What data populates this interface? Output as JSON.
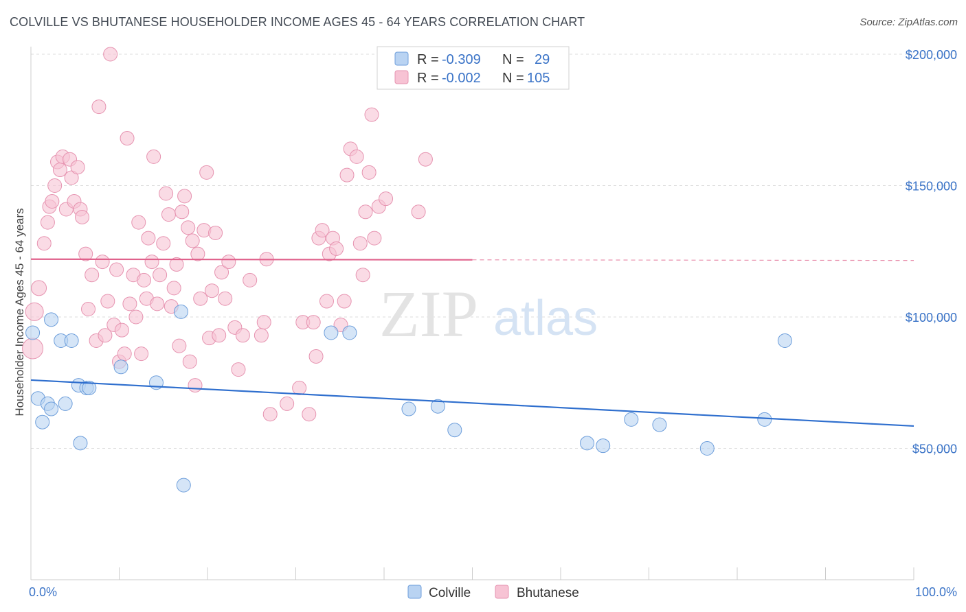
{
  "header": {
    "title": "COLVILLE VS BHUTANESE HOUSEHOLDER INCOME AGES 45 - 64 YEARS CORRELATION CHART",
    "source": "Source: ZipAtlas.com"
  },
  "watermark": {
    "zip": "ZIP",
    "atlas": "atlas"
  },
  "colors": {
    "colville_fill": "#b9d3f2",
    "colville_stroke": "#6d9edb",
    "colville_line": "#2f6fce",
    "bhutanese_fill": "#f7c3d4",
    "bhutanese_stroke": "#e693b0",
    "bhutanese_line": "#e0628c",
    "tick": "#3a73c7",
    "grid": "#dddddd"
  },
  "legend_top": {
    "rows": [
      {
        "r_label": "R =",
        "r_value": "-0.309",
        "n_label": "N =",
        "n_value": "29"
      },
      {
        "r_label": "R =",
        "r_value": "-0.002",
        "n_label": "N =",
        "n_value": "105"
      }
    ]
  },
  "chart_data": {
    "type": "scatter",
    "title": "COLVILLE VS BHUTANESE HOUSEHOLDER INCOME AGES 45 - 64 YEARS CORRELATION CHART",
    "xlabel": "",
    "ylabel": "Householder Income Ages 45 - 64 years",
    "xlim": [
      0,
      100
    ],
    "ylim": [
      0,
      205000
    ],
    "x_tick_labels": [
      "0.0%",
      "100.0%"
    ],
    "y_ticks": [
      50000,
      100000,
      150000,
      200000
    ],
    "y_tick_labels": [
      "$50,000",
      "$100,000",
      "$150,000",
      "$200,000"
    ],
    "series": [
      {
        "name": "Colville",
        "R": -0.309,
        "N": 29,
        "trend": {
          "x0": 0,
          "y0": 76000,
          "x1": 100,
          "y1": 58500,
          "x_solid_end": 100
        },
        "points": [
          [
            0.2,
            94000,
            10
          ],
          [
            0.8,
            69000,
            10
          ],
          [
            1.3,
            60000,
            10
          ],
          [
            1.9,
            67000,
            10
          ],
          [
            2.3,
            65000,
            10
          ],
          [
            2.3,
            99000,
            10
          ],
          [
            3.4,
            91000,
            10
          ],
          [
            3.9,
            67000,
            10
          ],
          [
            4.6,
            91000,
            10
          ],
          [
            5.4,
            74000,
            10
          ],
          [
            5.6,
            52000,
            10
          ],
          [
            6.3,
            73000,
            10
          ],
          [
            6.6,
            73000,
            10
          ],
          [
            10.2,
            81000,
            10
          ],
          [
            14.2,
            75000,
            10
          ],
          [
            17.0,
            102000,
            10
          ],
          [
            17.3,
            36000,
            10
          ],
          [
            34.0,
            94000,
            10
          ],
          [
            36.1,
            94000,
            10
          ],
          [
            42.8,
            65000,
            10
          ],
          [
            46.1,
            66000,
            10
          ],
          [
            48.0,
            57000,
            10
          ],
          [
            63.0,
            52000,
            10
          ],
          [
            64.8,
            51000,
            10
          ],
          [
            68.0,
            61000,
            10
          ],
          [
            71.2,
            59000,
            10
          ],
          [
            76.6,
            50000,
            10
          ],
          [
            83.1,
            61000,
            10
          ],
          [
            85.4,
            91000,
            10
          ]
        ]
      },
      {
        "name": "Bhutanese",
        "R": -0.002,
        "N": 105,
        "trend": {
          "x0": 0,
          "y0": 122000,
          "x1": 100,
          "y1": 121500,
          "x_solid_end": 50
        },
        "points": [
          [
            0.2,
            88000,
            15
          ],
          [
            0.4,
            102000,
            13
          ],
          [
            0.9,
            111000,
            11
          ],
          [
            1.5,
            128000,
            10
          ],
          [
            1.9,
            136000,
            10
          ],
          [
            2.1,
            142000,
            10
          ],
          [
            2.4,
            144000,
            10
          ],
          [
            2.7,
            150000,
            10
          ],
          [
            3.0,
            159000,
            10
          ],
          [
            3.3,
            156000,
            10
          ],
          [
            3.6,
            161000,
            10
          ],
          [
            4.0,
            141000,
            10
          ],
          [
            4.4,
            160000,
            10
          ],
          [
            4.6,
            153000,
            10
          ],
          [
            4.9,
            144000,
            10
          ],
          [
            5.3,
            157000,
            10
          ],
          [
            5.6,
            141000,
            10
          ],
          [
            5.8,
            138000,
            10
          ],
          [
            6.2,
            124000,
            10
          ],
          [
            6.5,
            103000,
            10
          ],
          [
            6.9,
            116000,
            10
          ],
          [
            7.4,
            91000,
            10
          ],
          [
            7.7,
            180000,
            10
          ],
          [
            8.1,
            121000,
            10
          ],
          [
            8.4,
            93000,
            10
          ],
          [
            8.7,
            106000,
            10
          ],
          [
            9.0,
            200000,
            10
          ],
          [
            9.4,
            97000,
            10
          ],
          [
            9.7,
            118000,
            10
          ],
          [
            10.0,
            83000,
            10
          ],
          [
            10.3,
            95000,
            10
          ],
          [
            10.6,
            86000,
            10
          ],
          [
            10.9,
            168000,
            10
          ],
          [
            11.2,
            105000,
            10
          ],
          [
            11.6,
            116000,
            10
          ],
          [
            11.9,
            100000,
            10
          ],
          [
            12.2,
            136000,
            10
          ],
          [
            12.5,
            86000,
            10
          ],
          [
            12.8,
            114000,
            10
          ],
          [
            13.1,
            107000,
            10
          ],
          [
            13.3,
            130000,
            10
          ],
          [
            13.7,
            121000,
            10
          ],
          [
            13.9,
            161000,
            10
          ],
          [
            14.3,
            105000,
            10
          ],
          [
            14.6,
            116000,
            10
          ],
          [
            15.0,
            128000,
            10
          ],
          [
            15.3,
            147000,
            10
          ],
          [
            15.6,
            139000,
            10
          ],
          [
            15.9,
            104000,
            10
          ],
          [
            16.2,
            111000,
            10
          ],
          [
            16.5,
            120000,
            10
          ],
          [
            16.8,
            89000,
            10
          ],
          [
            17.1,
            140000,
            10
          ],
          [
            17.4,
            146000,
            10
          ],
          [
            17.8,
            134000,
            10
          ],
          [
            18.0,
            83000,
            10
          ],
          [
            18.3,
            129000,
            10
          ],
          [
            18.6,
            74000,
            10
          ],
          [
            18.9,
            124000,
            10
          ],
          [
            19.2,
            107000,
            10
          ],
          [
            19.6,
            133000,
            10
          ],
          [
            19.9,
            155000,
            10
          ],
          [
            20.2,
            92000,
            10
          ],
          [
            20.5,
            110000,
            10
          ],
          [
            20.9,
            132000,
            10
          ],
          [
            21.3,
            93000,
            10
          ],
          [
            21.6,
            117000,
            10
          ],
          [
            22.0,
            107000,
            10
          ],
          [
            22.4,
            121000,
            10
          ],
          [
            23.1,
            96000,
            10
          ],
          [
            23.5,
            80000,
            10
          ],
          [
            24.0,
            93000,
            10
          ],
          [
            24.8,
            114000,
            10
          ],
          [
            26.1,
            93000,
            10
          ],
          [
            26.4,
            98000,
            10
          ],
          [
            26.7,
            122000,
            10
          ],
          [
            27.1,
            63000,
            10
          ],
          [
            29.0,
            67000,
            10
          ],
          [
            30.4,
            73000,
            10
          ],
          [
            30.8,
            98000,
            10
          ],
          [
            31.5,
            63000,
            10
          ],
          [
            32.0,
            98000,
            10
          ],
          [
            32.3,
            85000,
            10
          ],
          [
            32.6,
            130000,
            10
          ],
          [
            33.0,
            133000,
            10
          ],
          [
            33.5,
            106000,
            10
          ],
          [
            33.8,
            124000,
            10
          ],
          [
            34.2,
            130000,
            10
          ],
          [
            34.6,
            126000,
            10
          ],
          [
            35.1,
            97000,
            10
          ],
          [
            35.5,
            106000,
            10
          ],
          [
            35.8,
            154000,
            10
          ],
          [
            36.2,
            164000,
            10
          ],
          [
            36.9,
            161000,
            10
          ],
          [
            37.3,
            128000,
            10
          ],
          [
            37.6,
            116000,
            10
          ],
          [
            37.9,
            140000,
            10
          ],
          [
            38.3,
            155000,
            10
          ],
          [
            38.6,
            177000,
            10
          ],
          [
            38.9,
            130000,
            10
          ],
          [
            39.4,
            142000,
            10
          ],
          [
            40.2,
            145000,
            10
          ],
          [
            43.9,
            140000,
            10
          ],
          [
            44.7,
            160000,
            10
          ],
          [
            50.0,
            122000,
            0
          ]
        ]
      }
    ],
    "legend": [
      "Colville",
      "Bhutanese"
    ],
    "grid": true,
    "legend_position": "top-center"
  },
  "bottom_legend": {
    "items": [
      "Colville",
      "Bhutanese"
    ]
  }
}
